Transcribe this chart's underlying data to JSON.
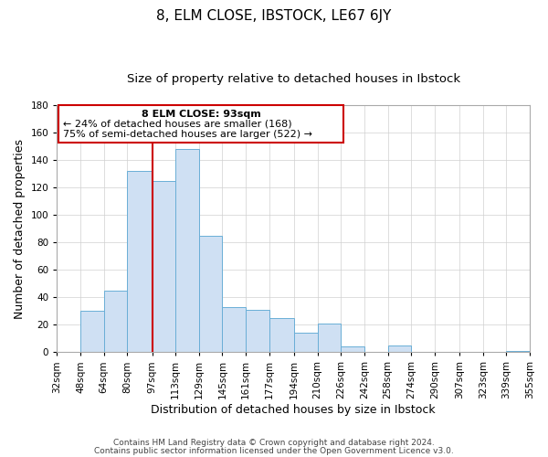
{
  "title": "8, ELM CLOSE, IBSTOCK, LE67 6JY",
  "subtitle": "Size of property relative to detached houses in Ibstock",
  "xlabel": "Distribution of detached houses by size in Ibstock",
  "ylabel": "Number of detached properties",
  "bar_left_edges": [
    32,
    48,
    64,
    80,
    97,
    113,
    129,
    145,
    161,
    177,
    194,
    210,
    226,
    242,
    258,
    274,
    290,
    307,
    323,
    339
  ],
  "bar_widths": [
    16,
    16,
    16,
    17,
    16,
    16,
    16,
    16,
    16,
    17,
    16,
    16,
    16,
    16,
    16,
    16,
    17,
    16,
    16,
    16
  ],
  "bar_heights": [
    0,
    30,
    45,
    132,
    125,
    148,
    85,
    33,
    31,
    25,
    14,
    21,
    4,
    0,
    5,
    0,
    0,
    0,
    0,
    1
  ],
  "tick_labels": [
    "32sqm",
    "48sqm",
    "64sqm",
    "80sqm",
    "97sqm",
    "113sqm",
    "129sqm",
    "145sqm",
    "161sqm",
    "177sqm",
    "194sqm",
    "210sqm",
    "226sqm",
    "242sqm",
    "258sqm",
    "274sqm",
    "290sqm",
    "307sqm",
    "323sqm",
    "339sqm",
    "355sqm"
  ],
  "tick_positions": [
    32,
    48,
    64,
    80,
    97,
    113,
    129,
    145,
    161,
    177,
    194,
    210,
    226,
    242,
    258,
    274,
    290,
    307,
    323,
    339,
    355
  ],
  "bar_facecolor": "#cfe0f3",
  "bar_edgecolor": "#6aaed6",
  "red_line_x": 97,
  "red_line_color": "#cc0000",
  "ylim": [
    0,
    180
  ],
  "yticks": [
    0,
    20,
    40,
    60,
    80,
    100,
    120,
    140,
    160,
    180
  ],
  "xlim": [
    32,
    355
  ],
  "annotation_text_line1": "8 ELM CLOSE: 93sqm",
  "annotation_text_line2": "← 24% of detached houses are smaller (168)",
  "annotation_text_line3": "75% of semi-detached houses are larger (522) →",
  "footer_line1": "Contains HM Land Registry data © Crown copyright and database right 2024.",
  "footer_line2": "Contains public sector information licensed under the Open Government Licence v3.0.",
  "bg_color": "#ffffff",
  "grid_color": "#d0d0d0",
  "title_fontsize": 11,
  "subtitle_fontsize": 9.5,
  "axis_label_fontsize": 9,
  "tick_fontsize": 7.5,
  "annotation_fontsize": 8,
  "footer_fontsize": 6.5
}
